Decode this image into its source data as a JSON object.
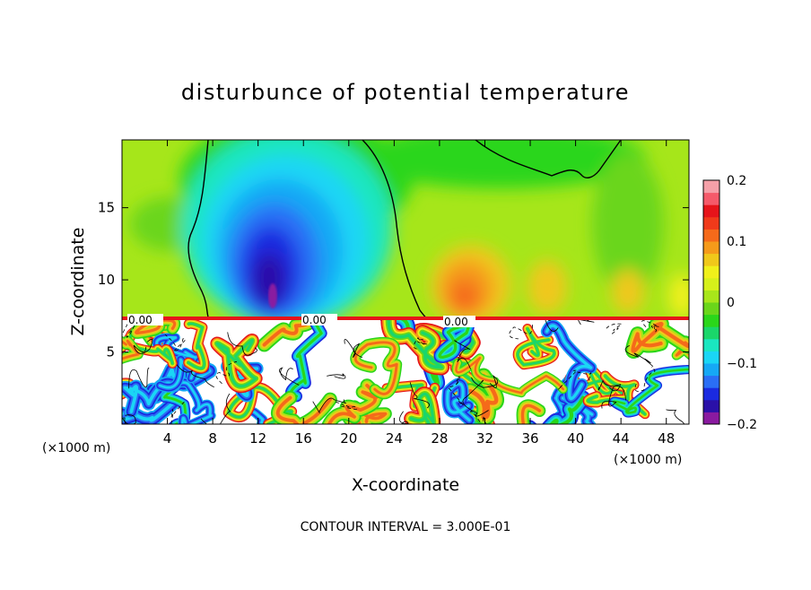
{
  "chart_data": {
    "type": "heatmap",
    "title": "disturbunce of potential temperature",
    "xlabel": "X-coordinate",
    "ylabel": "Z-coordinate",
    "x_unit_label": "(×1000 m)",
    "y_unit_label": "(×1000 m)",
    "xlim": [
      0,
      50
    ],
    "ylim": [
      0,
      19.7
    ],
    "x_ticks": [
      4,
      8,
      12,
      16,
      20,
      24,
      28,
      32,
      36,
      40,
      44,
      48
    ],
    "y_ticks": [
      5,
      10,
      15
    ],
    "footer": "CONTOUR INTERVAL = 3.000E-01",
    "colorbar": {
      "range": [
        -0.2,
        0.2
      ],
      "ticks": [
        {
          "value": 0.2,
          "label": "0.2"
        },
        {
          "value": 0.1,
          "label": "0.1"
        },
        {
          "value": 0.0,
          "label": "0"
        },
        {
          "value": -0.1,
          "label": "-0.1"
        },
        {
          "value": -0.2,
          "label": "-0.2"
        }
      ],
      "colors": [
        "#8a1aa0",
        "#2a10a8",
        "#1a2ae0",
        "#2a6ef5",
        "#16a8f5",
        "#1ad6f5",
        "#1ae6c0",
        "#1ad66a",
        "#2ad61a",
        "#6ad61a",
        "#a8e61a",
        "#d6f01a",
        "#f0f01a",
        "#f0c81a",
        "#f59a1a",
        "#f56a1a",
        "#f03a1a",
        "#e6141a",
        "#f55a6a",
        "#f5a0a8"
      ]
    },
    "contour_labels": [
      "0.00",
      "0.00",
      "0.00"
    ],
    "interface_height": 7.2
  }
}
